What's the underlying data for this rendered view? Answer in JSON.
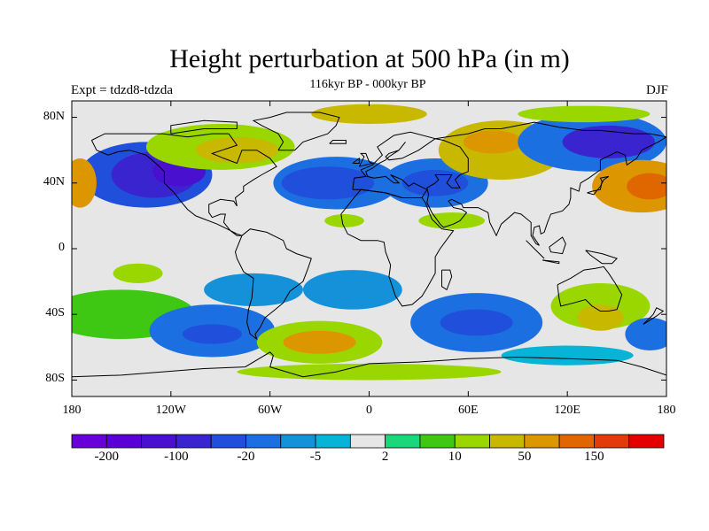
{
  "header": {
    "title": "Height perturbation at 500 hPa (in m)",
    "subtitle": "116kyr BP - 000kyr BP",
    "expt": "Expt = tdzd8-tdzda",
    "season": "DJF"
  },
  "map": {
    "lat_ticks": [
      {
        "value": 80,
        "label": "80N"
      },
      {
        "value": 40,
        "label": "40N"
      },
      {
        "value": 0,
        "label": "0"
      },
      {
        "value": -40,
        "label": "40S"
      },
      {
        "value": -80,
        "label": "80S"
      }
    ],
    "lon_ticks": [
      {
        "value": -180,
        "label": "180"
      },
      {
        "value": -120,
        "label": "120W"
      },
      {
        "value": -60,
        "label": "60W"
      },
      {
        "value": 0,
        "label": "0"
      },
      {
        "value": 60,
        "label": "60E"
      },
      {
        "value": 120,
        "label": "120E"
      },
      {
        "value": 180,
        "label": "180"
      }
    ],
    "background_color": "#e6e6e6",
    "coastline_color": "#000000"
  },
  "colorbar": {
    "colors": [
      "#6a00d8",
      "#5a00d6",
      "#4a10d0",
      "#3a24cf",
      "#1f4fdb",
      "#1b6fe0",
      "#1491d8",
      "#07b4d8",
      "#e6e6e6",
      "#1cd67c",
      "#3ec814",
      "#9ad600",
      "#c8b800",
      "#dc9600",
      "#e06600",
      "#e23a0a",
      "#e40000"
    ],
    "labels": [
      {
        "boundary": 1,
        "label": "-200"
      },
      {
        "boundary": 3,
        "label": "-100"
      },
      {
        "boundary": 5,
        "label": "-20"
      },
      {
        "boundary": 7,
        "label": "-5"
      },
      {
        "boundary": 9,
        "label": "2"
      },
      {
        "boundary": 11,
        "label": "10"
      },
      {
        "boundary": 13,
        "label": "50"
      },
      {
        "boundary": 15,
        "label": "150"
      }
    ]
  },
  "anomaly_regions": [
    {
      "lon": -135,
      "lat": 45,
      "level": 4,
      "rx": 40,
      "ry": 20
    },
    {
      "lon": -130,
      "lat": 45,
      "level": 3,
      "rx": 26,
      "ry": 14
    },
    {
      "lon": -115,
      "lat": 47,
      "level": 2,
      "rx": 16,
      "ry": 9
    },
    {
      "lon": -175,
      "lat": 40,
      "level": 13,
      "rx": 10,
      "ry": 15
    },
    {
      "lon": -90,
      "lat": 62,
      "level": 11,
      "rx": 45,
      "ry": 14
    },
    {
      "lon": -80,
      "lat": 60,
      "level": 12,
      "rx": 25,
      "ry": 8
    },
    {
      "lon": -20,
      "lat": 40,
      "level": 5,
      "rx": 38,
      "ry": 16
    },
    {
      "lon": -25,
      "lat": 40,
      "level": 4,
      "rx": 28,
      "ry": 10
    },
    {
      "lon": 40,
      "lat": 40,
      "level": 5,
      "rx": 32,
      "ry": 15
    },
    {
      "lon": 40,
      "lat": 40,
      "level": 4,
      "rx": 20,
      "ry": 8
    },
    {
      "lon": 80,
      "lat": 60,
      "level": 12,
      "rx": 38,
      "ry": 18
    },
    {
      "lon": 75,
      "lat": 65,
      "level": 13,
      "rx": 18,
      "ry": 7
    },
    {
      "lon": 135,
      "lat": 65,
      "level": 5,
      "rx": 45,
      "ry": 18
    },
    {
      "lon": 145,
      "lat": 65,
      "level": 3,
      "rx": 28,
      "ry": 10
    },
    {
      "lon": 165,
      "lat": 38,
      "level": 13,
      "rx": 30,
      "ry": 16
    },
    {
      "lon": 170,
      "lat": 38,
      "level": 14,
      "rx": 14,
      "ry": 8
    },
    {
      "lon": 50,
      "lat": 17,
      "level": 11,
      "rx": 20,
      "ry": 5
    },
    {
      "lon": -15,
      "lat": 17,
      "level": 11,
      "rx": 12,
      "ry": 4
    },
    {
      "lon": -140,
      "lat": -15,
      "level": 11,
      "rx": 15,
      "ry": 6
    },
    {
      "lon": -150,
      "lat": -40,
      "level": 10,
      "rx": 45,
      "ry": 15
    },
    {
      "lon": -70,
      "lat": -25,
      "level": 6,
      "rx": 30,
      "ry": 10
    },
    {
      "lon": -10,
      "lat": -25,
      "level": 6,
      "rx": 30,
      "ry": 12
    },
    {
      "lon": -95,
      "lat": -50,
      "level": 5,
      "rx": 38,
      "ry": 16
    },
    {
      "lon": -95,
      "lat": -52,
      "level": 4,
      "rx": 18,
      "ry": 6
    },
    {
      "lon": -30,
      "lat": -57,
      "level": 11,
      "rx": 38,
      "ry": 13
    },
    {
      "lon": -30,
      "lat": -57,
      "level": 13,
      "rx": 22,
      "ry": 7
    },
    {
      "lon": 65,
      "lat": -45,
      "level": 5,
      "rx": 40,
      "ry": 18
    },
    {
      "lon": 65,
      "lat": -45,
      "level": 4,
      "rx": 22,
      "ry": 8
    },
    {
      "lon": 140,
      "lat": -35,
      "level": 11,
      "rx": 30,
      "ry": 14
    },
    {
      "lon": 140,
      "lat": -42,
      "level": 12,
      "rx": 14,
      "ry": 8
    },
    {
      "lon": 170,
      "lat": -52,
      "level": 5,
      "rx": 15,
      "ry": 10
    },
    {
      "lon": 0,
      "lat": -75,
      "level": 11,
      "rx": 80,
      "ry": 5
    },
    {
      "lon": 120,
      "lat": -65,
      "level": 7,
      "rx": 40,
      "ry": 6
    },
    {
      "lon": 0,
      "lat": 82,
      "level": 12,
      "rx": 35,
      "ry": 6
    },
    {
      "lon": 130,
      "lat": 82,
      "level": 11,
      "rx": 40,
      "ry": 5
    }
  ]
}
